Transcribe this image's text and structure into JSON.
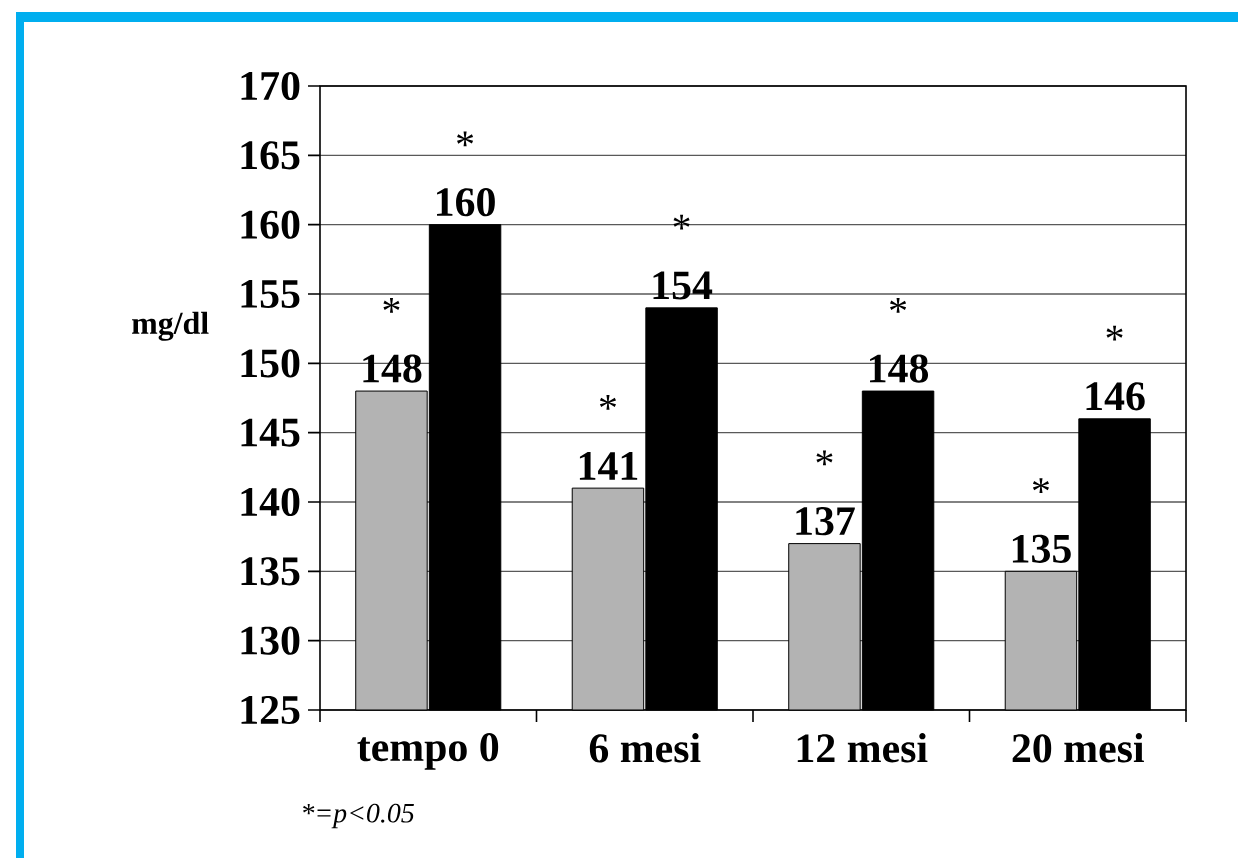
{
  "chart_data": {
    "type": "bar",
    "ylabel": "mg/dl",
    "categories": [
      "tempo 0",
      "6 mesi",
      "12 mesi",
      "20 mesi"
    ],
    "series": [
      {
        "color": "#b3b3b3",
        "values": [
          148,
          141,
          137,
          135
        ]
      },
      {
        "color": "#000000",
        "values": [
          160,
          154,
          148,
          146
        ]
      }
    ],
    "ylim": [
      125,
      170
    ],
    "yticks": [
      125,
      130,
      135,
      140,
      145,
      150,
      155,
      160,
      165,
      170
    ],
    "grid": "y",
    "data_labels": true,
    "annotations": [
      {
        "text": "*",
        "x": "tempo 0",
        "y": 148
      },
      {
        "text": "*",
        "x": "tempo 0",
        "y": 160
      },
      {
        "text": "*",
        "x": "6 mesi",
        "y": 141
      },
      {
        "text": "*",
        "x": "6 mesi",
        "y": 154
      },
      {
        "text": "*",
        "x": "12 mesi",
        "y": 137
      },
      {
        "text": "*",
        "x": "12 mesi",
        "y": 148
      },
      {
        "text": "*",
        "x": "20 mesi",
        "y": 135
      },
      {
        "text": "*",
        "x": "20 mesi",
        "y": 146
      },
      "*=p<0.05"
    ]
  }
}
